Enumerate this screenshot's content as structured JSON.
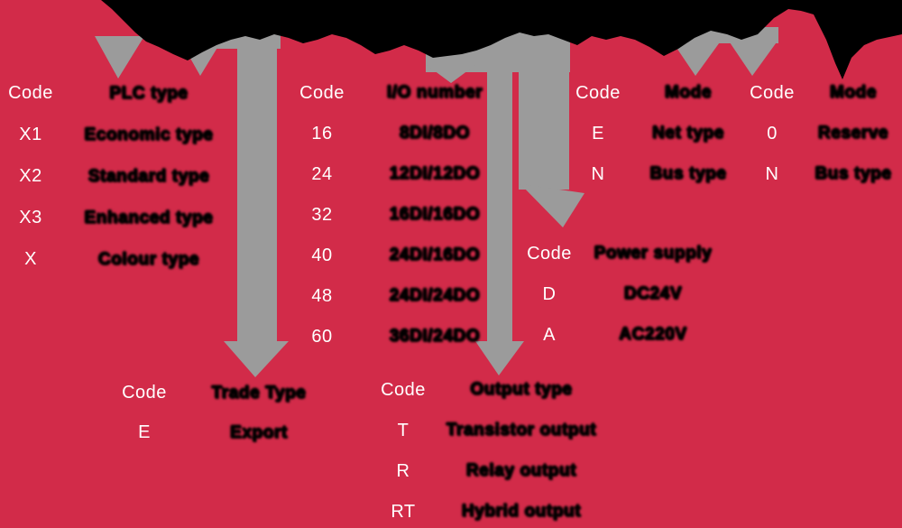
{
  "palette": {
    "background": "#d22b49",
    "banner": "#000000",
    "arrow": "#9b9b9b",
    "code_text": "#ffffff",
    "label_text": "#000000"
  },
  "groups": [
    {
      "title": "plc-type",
      "header": {
        "code": "Code",
        "label": "PLC type"
      },
      "rows": [
        {
          "code": "X1",
          "label": "Economic type"
        },
        {
          "code": "X2",
          "label": "Standard type"
        },
        {
          "code": "X3",
          "label": "Enhanced type"
        },
        {
          "code": "X",
          "label": "Colour type"
        }
      ]
    },
    {
      "title": "io-number",
      "header": {
        "code": "Code",
        "label": "I/O number"
      },
      "rows": [
        {
          "code": "16",
          "label": "8DI/8DO"
        },
        {
          "code": "24",
          "label": "12DI/12DO"
        },
        {
          "code": "32",
          "label": "16DI/16DO"
        },
        {
          "code": "40",
          "label": "24DI/16DO"
        },
        {
          "code": "48",
          "label": "24DI/24DO"
        },
        {
          "code": "60",
          "label": "36DI/24DO"
        }
      ]
    },
    {
      "title": "mode-1",
      "header": {
        "code": "Code",
        "label": "Mode"
      },
      "rows": [
        {
          "code": "E",
          "label": "Net type"
        },
        {
          "code": "N",
          "label": "Bus type"
        }
      ]
    },
    {
      "title": "mode-2",
      "header": {
        "code": "Code",
        "label": "Mode"
      },
      "rows": [
        {
          "code": "0",
          "label": "Reserve"
        },
        {
          "code": "N",
          "label": "Bus type"
        }
      ]
    },
    {
      "title": "power-supply",
      "header": {
        "code": "Code",
        "label": "Power supply"
      },
      "rows": [
        {
          "code": "D",
          "label": "DC24V"
        },
        {
          "code": "A",
          "label": "AC220V"
        }
      ]
    },
    {
      "title": "trade-type",
      "header": {
        "code": "Code",
        "label": "Trade Type"
      },
      "rows": [
        {
          "code": "E",
          "label": "Export"
        }
      ]
    },
    {
      "title": "output-type",
      "header": {
        "code": "Code",
        "label": "Output type"
      },
      "rows": [
        {
          "code": "T",
          "label": "Transistor output"
        },
        {
          "code": "R",
          "label": "Relay output"
        },
        {
          "code": "RT",
          "label": "Hybrid output"
        }
      ]
    }
  ]
}
